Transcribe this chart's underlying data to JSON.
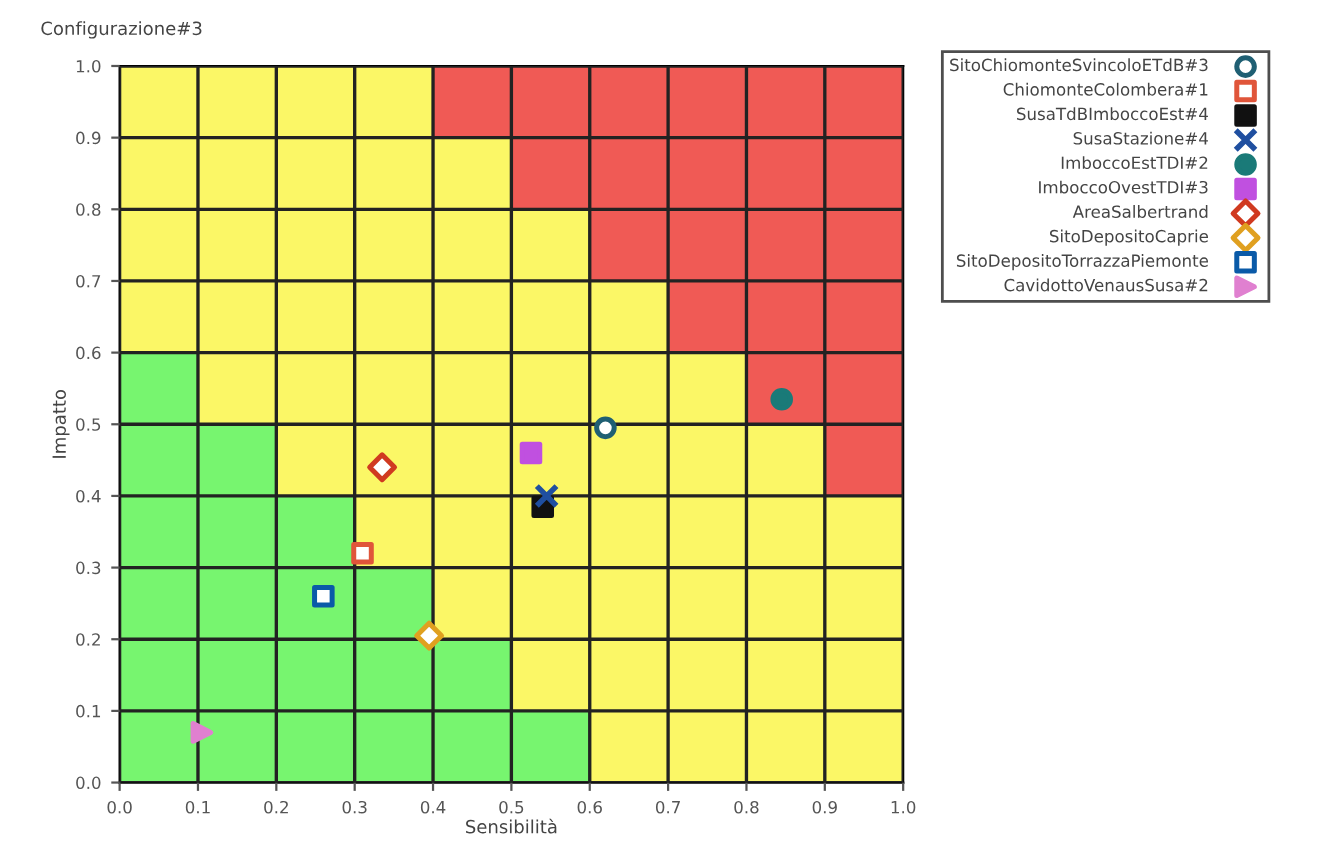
{
  "chart_data": {
    "type": "scatter",
    "title": "Configurazione#3",
    "xlabel": "Sensibilità",
    "ylabel": "Impatto",
    "xlim": [
      0,
      1
    ],
    "ylim": [
      0,
      1
    ],
    "xticks": [
      {
        "value": 0,
        "label": "0.0"
      },
      {
        "value": 0.1,
        "label": "0.1"
      },
      {
        "value": 0.2,
        "label": "0.2"
      },
      {
        "value": 0.3,
        "label": "0.3"
      },
      {
        "value": 0.4,
        "label": "0.4"
      },
      {
        "value": 0.5,
        "label": "0.5"
      },
      {
        "value": 0.6,
        "label": "0.6"
      },
      {
        "value": 0.7,
        "label": "0.7"
      },
      {
        "value": 0.8,
        "label": "0.8"
      },
      {
        "value": 0.9,
        "label": "0.9"
      },
      {
        "value": 1,
        "label": "1.0"
      }
    ],
    "yticks": [
      {
        "value": 0,
        "label": "0.0"
      },
      {
        "value": 0.1,
        "label": "0.1"
      },
      {
        "value": 0.2,
        "label": "0.2"
      },
      {
        "value": 0.3,
        "label": "0.3"
      },
      {
        "value": 0.4,
        "label": "0.4"
      },
      {
        "value": 0.5,
        "label": "0.5"
      },
      {
        "value": 0.6,
        "label": "0.6"
      },
      {
        "value": 0.7,
        "label": "0.7"
      },
      {
        "value": 0.8,
        "label": "0.8"
      },
      {
        "value": 0.9,
        "label": "0.9"
      },
      {
        "value": 1,
        "label": "1.0"
      }
    ],
    "grid": true,
    "legend": "right",
    "series": [
      {
        "name": "SitoChiomonteSvincoloETdB#3",
        "color": "#1f5f73",
        "marker": "circle",
        "x": [
          0.62
        ],
        "values": [
          0.495
        ]
      },
      {
        "name": "ChiomonteColombera#1",
        "color": "#e0553a",
        "marker": "square",
        "x": [
          0.31
        ],
        "values": [
          0.32
        ]
      },
      {
        "name": "SusaTdBImboccoEst#4",
        "color": "#111111",
        "marker": "square",
        "x": [
          0.54
        ],
        "values": [
          0.385
        ]
      },
      {
        "name": "SusaStazione#4",
        "color": "#1f4fa0",
        "marker": "cross",
        "x": [
          0.545
        ],
        "values": [
          0.4
        ]
      },
      {
        "name": "ImboccoEstTDI#2",
        "color": "#1a7a78",
        "marker": "circle",
        "x": [
          0.845
        ],
        "values": [
          0.535
        ]
      },
      {
        "name": "ImboccoOvestTDI#3",
        "color": "#c050e0",
        "marker": "square",
        "x": [
          0.525
        ],
        "values": [
          0.46
        ]
      },
      {
        "name": "AreaSalbertrand",
        "color": "#d03a20",
        "marker": "diamond",
        "x": [
          0.335
        ],
        "values": [
          0.44
        ]
      },
      {
        "name": "SitoDepositoCaprie",
        "color": "#e0a020",
        "marker": "diamond",
        "x": [
          0.395
        ],
        "values": [
          0.205
        ]
      },
      {
        "name": "SitoDepositoTorrazzaPiemonte",
        "color": "#0a5aa8",
        "marker": "square",
        "x": [
          0.26
        ],
        "values": [
          0.26
        ]
      },
      {
        "name": "CavidottoVenausSusa#2",
        "color": "#e080d0",
        "marker": "triangle",
        "x": [
          0.105
        ],
        "values": [
          0.07
        ]
      }
    ]
  }
}
